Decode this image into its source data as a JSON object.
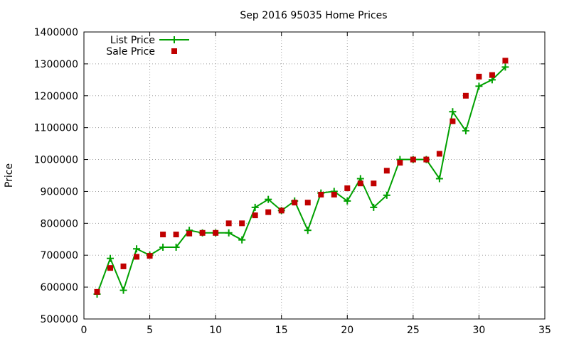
{
  "chart_data": {
    "type": "line",
    "title": "Sep 2016 95035 Home Prices",
    "xlabel": "",
    "ylabel": "Price",
    "xlim": [
      0,
      35
    ],
    "ylim": [
      500000,
      1400000
    ],
    "xticks": [
      0,
      5,
      10,
      15,
      20,
      25,
      30,
      35
    ],
    "yticks": [
      500000,
      600000,
      700000,
      800000,
      900000,
      1000000,
      1100000,
      1200000,
      1300000,
      1400000
    ],
    "grid": true,
    "legend_position": "top-left",
    "series": [
      {
        "name": "List Price",
        "style": "linespoints",
        "marker": "plus",
        "color": "#00a000",
        "points": [
          [
            1,
            578000
          ],
          [
            2,
            690000
          ],
          [
            3,
            590000
          ],
          [
            4,
            720000
          ],
          [
            5,
            700000
          ],
          [
            6,
            725000
          ],
          [
            7,
            725000
          ],
          [
            8,
            778000
          ],
          [
            9,
            770000
          ],
          [
            10,
            770000
          ],
          [
            11,
            770000
          ],
          [
            12,
            748000
          ],
          [
            13,
            850000
          ],
          [
            14,
            875000
          ],
          [
            15,
            840000
          ],
          [
            16,
            870000
          ],
          [
            17,
            778000
          ],
          [
            18,
            895000
          ],
          [
            19,
            900000
          ],
          [
            20,
            870000
          ],
          [
            21,
            940000
          ],
          [
            22,
            850000
          ],
          [
            23,
            888000
          ],
          [
            24,
            1000000
          ],
          [
            25,
            1000000
          ],
          [
            26,
            1000000
          ],
          [
            27,
            940000
          ],
          [
            28,
            1150000
          ],
          [
            29,
            1090000
          ],
          [
            30,
            1230000
          ],
          [
            31,
            1250000
          ],
          [
            32,
            1290000
          ]
        ]
      },
      {
        "name": "Sale Price",
        "style": "points",
        "marker": "square",
        "color": "#c00000",
        "points": [
          [
            1,
            585000
          ],
          [
            2,
            660000
          ],
          [
            3,
            665000
          ],
          [
            4,
            695000
          ],
          [
            5,
            698000
          ],
          [
            6,
            765000
          ],
          [
            7,
            765000
          ],
          [
            8,
            768000
          ],
          [
            9,
            770000
          ],
          [
            10,
            770000
          ],
          [
            11,
            800000
          ],
          [
            12,
            800000
          ],
          [
            13,
            825000
          ],
          [
            14,
            835000
          ],
          [
            15,
            840000
          ],
          [
            16,
            865000
          ],
          [
            17,
            865000
          ],
          [
            18,
            890000
          ],
          [
            19,
            890000
          ],
          [
            20,
            910000
          ],
          [
            21,
            925000
          ],
          [
            22,
            925000
          ],
          [
            23,
            965000
          ],
          [
            24,
            990000
          ],
          [
            25,
            1000000
          ],
          [
            26,
            1000000
          ],
          [
            27,
            1018000
          ],
          [
            28,
            1120000
          ],
          [
            29,
            1200000
          ],
          [
            30,
            1260000
          ],
          [
            31,
            1265000
          ],
          [
            32,
            1310000
          ]
        ]
      }
    ]
  }
}
